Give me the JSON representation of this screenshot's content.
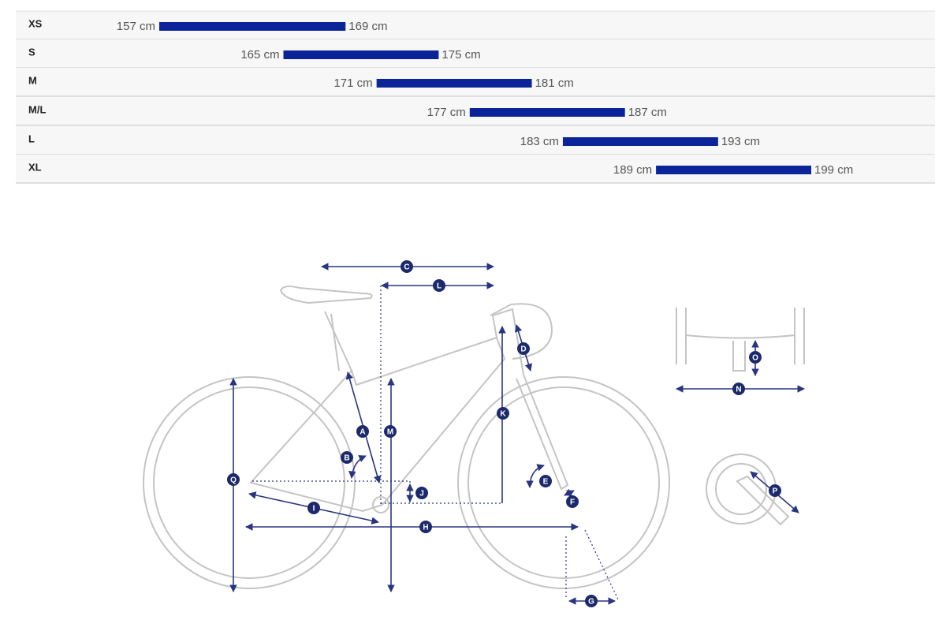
{
  "chart_data": {
    "type": "range-bar",
    "categories": [
      "XS",
      "S",
      "M",
      "M/L",
      "L",
      "XL"
    ],
    "color": "#0b2499",
    "series": [
      {
        "values": [
          157,
          165,
          171,
          177,
          183,
          189
        ],
        "value_labels": [
          "157 cm",
          "165 cm",
          "171 cm",
          "177 cm",
          "183 cm",
          "189 cm"
        ]
      },
      {
        "values": [
          169,
          175,
          181,
          187,
          193,
          199
        ],
        "value_labels": [
          "169 cm",
          "175 cm",
          "181 cm",
          "187 cm",
          "193 cm",
          "199 cm"
        ]
      }
    ]
  },
  "diagram": {
    "labels": [
      "A",
      "B",
      "C",
      "D",
      "E",
      "F",
      "G",
      "H",
      "I",
      "J",
      "K",
      "L",
      "M",
      "N",
      "O",
      "P",
      "Q"
    ]
  }
}
